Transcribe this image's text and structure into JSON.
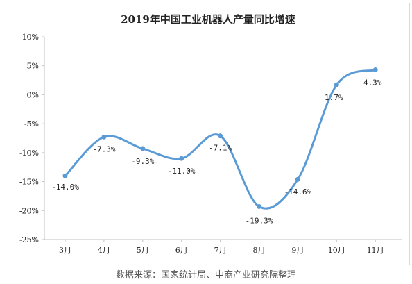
{
  "chart_data": {
    "type": "line",
    "title": "2019年中国工业机器人产量同比增速",
    "categories": [
      "3月",
      "4月",
      "5月",
      "6月",
      "7月",
      "8月",
      "9月",
      "10月",
      "11月"
    ],
    "series": [
      {
        "values": [
          -14.0,
          -7.3,
          -9.3,
          -11.0,
          -7.1,
          -19.3,
          -14.6,
          1.7,
          4.3
        ],
        "labels": [
          "-14.0%",
          "-7.3%",
          "-9.3%",
          "-11.0%",
          "-7.1%",
          "-19.3%",
          "-14.6%",
          "1.7%",
          "4.3%"
        ]
      }
    ],
    "ylim": [
      -25,
      10
    ],
    "yticks": [
      10,
      5,
      0,
      -5,
      -10,
      -15,
      -20,
      -25
    ],
    "ytick_labels": [
      "10%",
      "5%",
      "0%",
      "-5%",
      "-10%",
      "-15%",
      "-20%",
      "-25%"
    ],
    "grid": false,
    "legend": "none",
    "line_color": "#5b9bd5",
    "marker_color": "#5b9bd5"
  },
  "source": "数据来源：国家统计局、中商产业研究院整理"
}
